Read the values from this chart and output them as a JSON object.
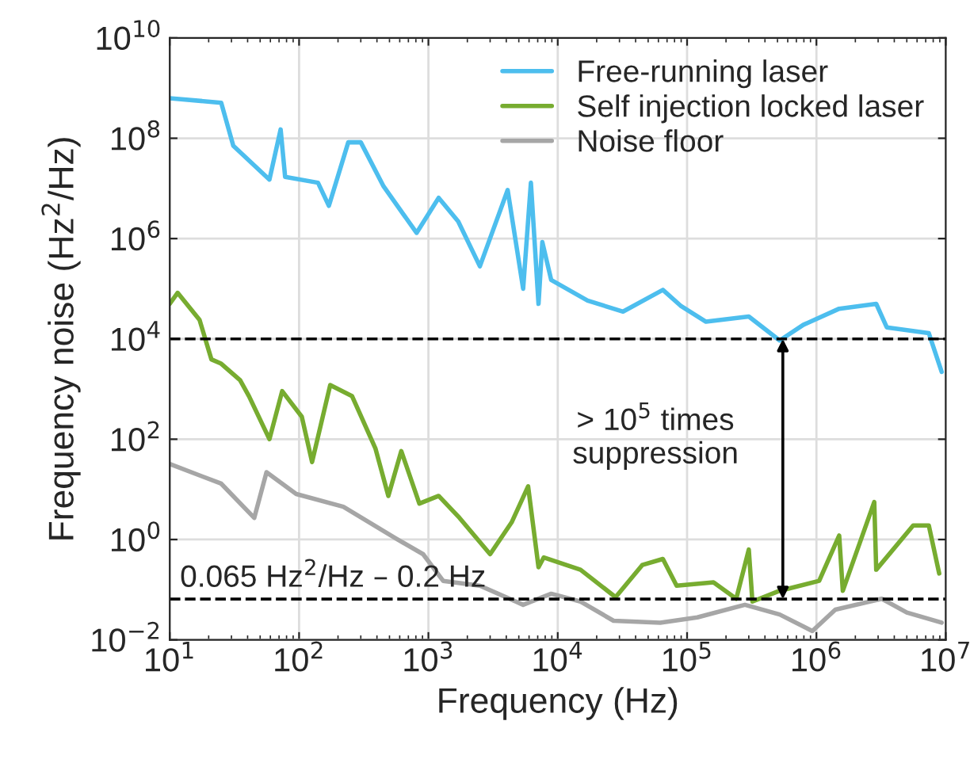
{
  "chart_data": {
    "type": "line",
    "xlabel": "Frequency (Hz)",
    "ylabel": "Frequency noise (Hz$^{2}$/Hz)",
    "log": "xy",
    "grid": true,
    "legend": "top right",
    "line_style": "solid",
    "marker": "none",
    "xlim": [
      10,
      10000000
    ],
    "ylim": [
      0.01,
      10000000000
    ],
    "xticks": [
      {
        "value": 10,
        "label": "10$^{1}$"
      },
      {
        "value": 100,
        "label": "10$^{2}$"
      },
      {
        "value": 1000,
        "label": "10$^{3}$"
      },
      {
        "value": 10000,
        "label": "10$^{4}$"
      },
      {
        "value": 100000,
        "label": "10$^{5}$"
      },
      {
        "value": 1000000,
        "label": "10$^{6}$"
      },
      {
        "value": 10000000,
        "label": "10$^{7}$"
      }
    ],
    "yticks": [
      {
        "value": 0.01,
        "label": "10$^{−2}$"
      },
      {
        "value": 1,
        "label": "10$^{0}$"
      },
      {
        "value": 100,
        "label": "10$^{2}$"
      },
      {
        "value": 10000,
        "label": "10$^{4}$"
      },
      {
        "value": 1000000,
        "label": "10$^{6}$"
      },
      {
        "value": 100000000,
        "label": "10$^{8}$"
      },
      {
        "value": 10000000000,
        "label": "10$^{10}$"
      }
    ],
    "series": [
      {
        "name": "Free-running laser",
        "color": "#4dbeee",
        "x": [
          10,
          25,
          31,
          59,
          72,
          78,
          140,
          170,
          240,
          300,
          450,
          810,
          1200,
          1700,
          2500,
          4100,
          5400,
          6200,
          7100,
          7600,
          8900,
          17000,
          32000,
          65000,
          89000,
          140000,
          300000,
          520000,
          790000,
          1500000,
          2900000,
          3500000,
          7400000,
          9300000
        ],
        "values": [
          630000000,
          510000000,
          71000000,
          15000000,
          150000000,
          17000000,
          13000000,
          4500000,
          83000000,
          83000000,
          11000000,
          1300000,
          6500000,
          2200000,
          280000,
          9300000,
          100000,
          13000000,
          50000,
          850000,
          150000,
          58000,
          35000,
          95000,
          46000,
          22000,
          28000,
          9300,
          19000,
          40000,
          50000,
          17000,
          13000,
          2200
        ]
      },
      {
        "name": "Self injection locked laser",
        "color": "#77ac30",
        "x": [
          10,
          11.5,
          17,
          21,
          25,
          35,
          41,
          59,
          74,
          105,
          126,
          174,
          257,
          389,
          490,
          617,
          851,
          1200,
          1740,
          3000,
          4400,
          5900,
          7100,
          7800,
          15000,
          28000,
          45000,
          65000,
          83000,
          160000,
          240000,
          300000,
          320000,
          520000,
          1050000,
          1500000,
          1600000,
          2800000,
          2900000,
          5600000,
          7400000,
          8900000
        ],
        "values": [
          50000,
          83000,
          24000,
          3900,
          3200,
          1500,
          720,
          100,
          910,
          280,
          35,
          1200,
          720,
          66,
          7.4,
          58,
          5.2,
          7.4,
          2.7,
          0.51,
          2.2,
          11.5,
          0.28,
          0.44,
          0.25,
          0.071,
          0.31,
          0.41,
          0.12,
          0.14,
          0.066,
          0.63,
          0.058,
          0.095,
          0.15,
          1.2,
          0.095,
          5.6,
          0.25,
          1.9,
          1.9,
          0.21
        ]
      },
      {
        "name": "Noise floor",
        "color": "#a6a6a6",
        "x": [
          10,
          25,
          45,
          56,
          95,
          220,
          560,
          910,
          1300,
          2500,
          5400,
          8900,
          15000,
          27000,
          62000,
          120000,
          280000,
          520000,
          930000,
          1400000,
          3200000,
          5000000,
          9300000
        ],
        "values": [
          32,
          13,
          2.7,
          22,
          8.1,
          4.5,
          1.05,
          0.51,
          0.15,
          0.12,
          0.05,
          0.083,
          0.058,
          0.024,
          0.022,
          0.028,
          0.05,
          0.032,
          0.015,
          0.04,
          0.066,
          0.035,
          0.022
        ]
      }
    ],
    "ref_lines": [
      {
        "axis": "y",
        "value": 10000,
        "color": "#000000",
        "line_style": "dashed"
      },
      {
        "axis": "y",
        "value": 0.065,
        "label": "0.065 Hz$^{2}$/Hz – 0.2 Hz",
        "color": "#000000",
        "line_style": "dashed"
      }
    ],
    "annotations": [
      {
        "text": "> 10$^{5}$ times\nsuppression",
        "x": 550000,
        "y": 10000
      }
    ]
  }
}
